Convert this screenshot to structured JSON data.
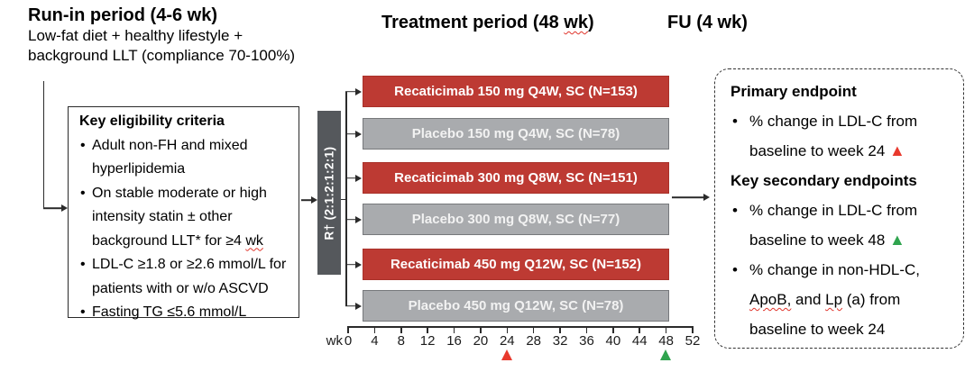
{
  "header": {
    "runin_title": "Run-in period (4-6 wk)",
    "runin_sub1": "Low-fat diet + healthy lifestyle +",
    "runin_sub2": "background LLT (compliance 70-100%)",
    "treatment_title_pre": "Treatment period (48 ",
    "treatment_title_squiggle": "wk",
    "treatment_title_post": ")",
    "fu_title": "FU (4 wk)"
  },
  "eligibility": {
    "title": "Key eligibility criteria",
    "items": [
      {
        "pre": "Adult non-FH and mixed hyperlipidemia"
      },
      {
        "pre": "On stable moderate or high intensity statin ± other background LLT* for ≥4 ",
        "squiggle": "wk"
      },
      {
        "pre": "LDL-C ≥1.8 or ≥2.6 mmol/L for patients with or w/o ASCVD"
      },
      {
        "pre": "Fasting TG ≤5.6 mmol/L"
      }
    ]
  },
  "randomization": {
    "label": "R† (2:1:2:1:2:1)"
  },
  "arms": [
    {
      "label": "Recaticimab 150 mg Q4W, SC (N=153)",
      "type": "treatment"
    },
    {
      "label": "Placebo 150 mg Q4W, SC (N=78)",
      "type": "placebo"
    },
    {
      "label": "Recaticimab 300 mg Q8W, SC (N=151)",
      "type": "treatment"
    },
    {
      "label": "Placebo 300 mg Q8W, SC (N=77)",
      "type": "placebo"
    },
    {
      "label": "Recaticimab 450 mg Q12W, SC (N=152)",
      "type": "treatment"
    },
    {
      "label": "Placebo 450 mg Q12W, SC (N=78)",
      "type": "placebo"
    }
  ],
  "axis": {
    "unit_label": "wk",
    "week_labels": [
      "0",
      "4",
      "8",
      "12",
      "16",
      "20",
      "24",
      "28",
      "32",
      "36",
      "40",
      "44",
      "48",
      "52"
    ],
    "markers": [
      {
        "week": 24,
        "color": "#e8392d",
        "name": "primary-endpoint-week24-marker-icon"
      },
      {
        "week": 48,
        "color": "#2fa44e",
        "name": "secondary-endpoint-week48-marker-icon"
      }
    ]
  },
  "endpoints": {
    "primary_title": "Primary endpoint",
    "primary_bullet": "% change in LDL-C from baseline to week 24",
    "secondary_title": "Key secondary endpoints",
    "secondary_bullet1": "% change in LDL-C from baseline to week 48",
    "secondary_bullet2_pre": "% change in non-HDL-C, ",
    "secondary_bullet2_sq1": "ApoB,",
    "secondary_bullet2_mid": " and ",
    "secondary_bullet2_sq2": "Lp",
    "secondary_bullet2_post": " (a) from baseline to week 24"
  },
  "icons": {
    "bullet": "•",
    "up_triangle": "▲"
  },
  "colors": {
    "arm_red": "#bd3a33",
    "arm_red_border": "#a93129",
    "arm_gray": "#a9abae",
    "arm_gray_border": "#76787b",
    "rand_gray": "#55585c",
    "triangle_red": "#e8392d",
    "triangle_green": "#2fa44e"
  }
}
